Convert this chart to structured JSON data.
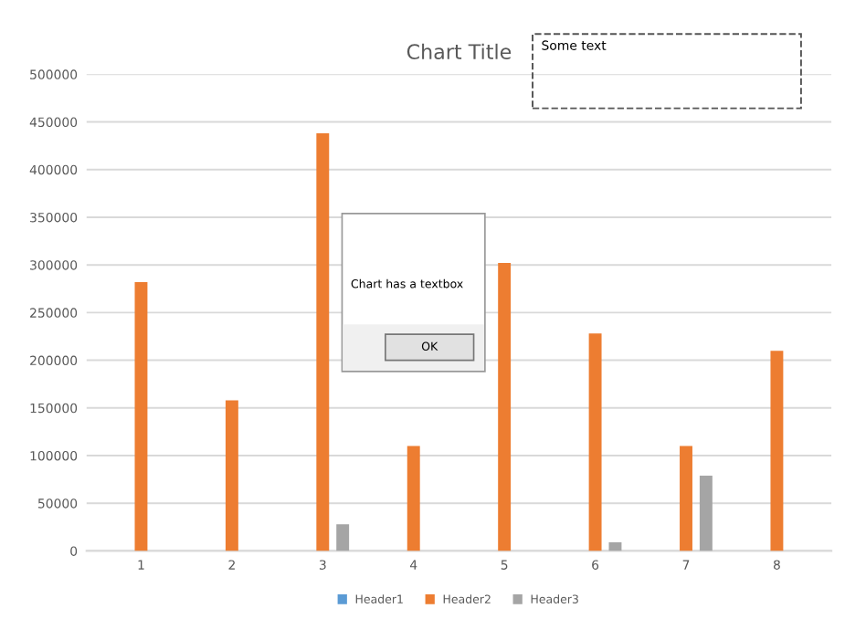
{
  "chart_data": {
    "type": "bar",
    "title": "Chart Title",
    "categories": [
      "1",
      "2",
      "3",
      "4",
      "5",
      "6",
      "7",
      "8"
    ],
    "series": [
      {
        "name": "Header1",
        "color": "#5b9bd5",
        "values": [
          null,
          null,
          null,
          null,
          null,
          null,
          null,
          null
        ]
      },
      {
        "name": "Header2",
        "color": "#ed7d31",
        "values": [
          282000,
          158000,
          438000,
          110000,
          302000,
          228000,
          110000,
          210000
        ]
      },
      {
        "name": "Header3",
        "color": "#a5a5a5",
        "values": [
          null,
          null,
          28000,
          null,
          null,
          9000,
          79000,
          null
        ]
      }
    ],
    "ylim": [
      0,
      500000
    ],
    "yticks": [
      0,
      50000,
      100000,
      150000,
      200000,
      250000,
      300000,
      350000,
      400000,
      450000,
      500000
    ],
    "grid": "y",
    "legend": "bottom",
    "annotations": [
      "Some text",
      "Chart has a textbox",
      "OK"
    ]
  }
}
